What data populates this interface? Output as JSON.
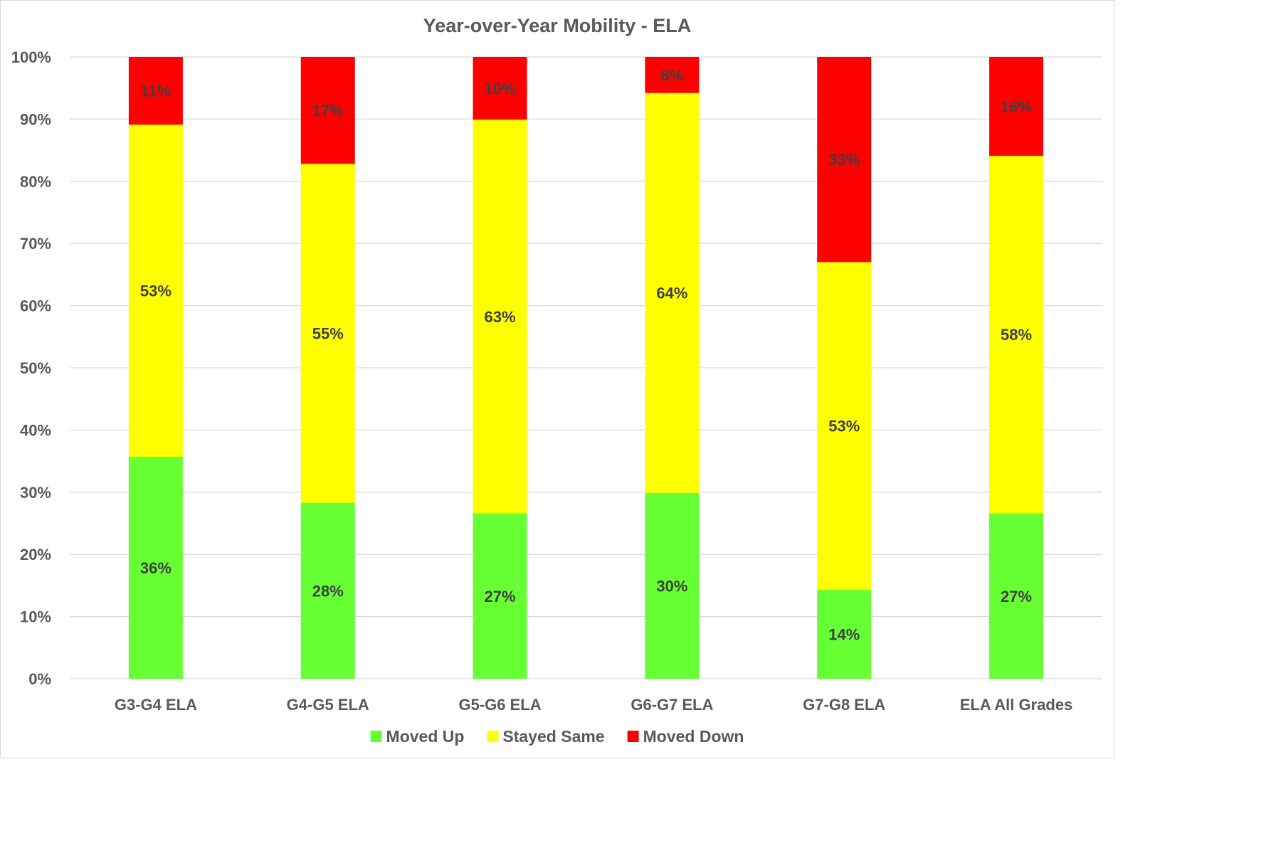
{
  "chart_data": {
    "type": "bar",
    "stacked": true,
    "title": "Year-over-Year Mobility - ELA",
    "xlabel": "",
    "ylabel": "",
    "ylim": [
      0,
      100
    ],
    "y_ticks": [
      0,
      10,
      20,
      30,
      40,
      50,
      60,
      70,
      80,
      90,
      100
    ],
    "y_tick_labels": [
      "0%",
      "10%",
      "20%",
      "30%",
      "40%",
      "50%",
      "60%",
      "70%",
      "80%",
      "90%",
      "100%"
    ],
    "grid": true,
    "legend_position": "bottom",
    "categories": [
      "G3-G4 ELA",
      "G4-G5 ELA",
      "G5-G6 ELA",
      "G6-G7 ELA",
      "G7-G8 ELA",
      "ELA All Grades"
    ],
    "series": [
      {
        "name": "Moved Up",
        "color": "#66ff33",
        "values": [
          35.7,
          28.3,
          26.6,
          29.9,
          14.3,
          26.6
        ],
        "labels": [
          "36%",
          "28%",
          "27%",
          "30%",
          "14%",
          "27%"
        ]
      },
      {
        "name": "Stayed Same",
        "color": "#ffff00",
        "values": [
          53.4,
          54.5,
          63.3,
          64.3,
          52.7,
          57.5
        ],
        "labels": [
          "53%",
          "55%",
          "63%",
          "64%",
          "53%",
          "58%"
        ]
      },
      {
        "name": "Moved Down",
        "color": "#ff0000",
        "values": [
          10.9,
          17.2,
          10.1,
          5.8,
          33.0,
          15.9
        ],
        "labels": [
          "11%",
          "17%",
          "10%",
          "6%",
          "33%",
          "16%"
        ]
      }
    ],
    "colors": {
      "label_text": "#404040",
      "axis_text": "#595959",
      "gridline": "#d9d9d9"
    }
  }
}
